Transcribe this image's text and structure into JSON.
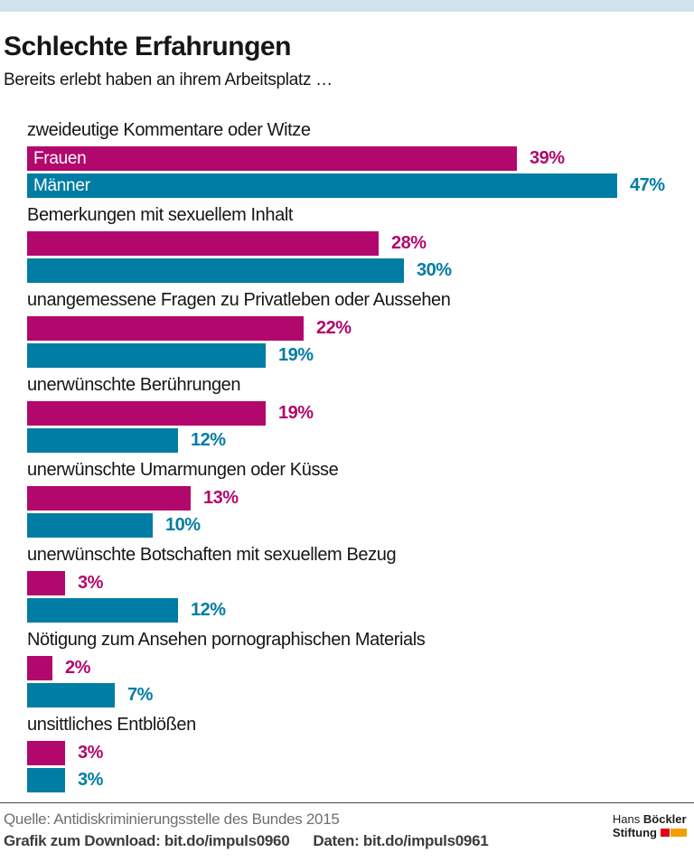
{
  "header": {
    "title": "Schlechte Erfahrungen",
    "subtitle": "Bereits erlebt haben an ihrem Arbeitsplatz …"
  },
  "chart_data": {
    "type": "bar",
    "orientation": "horizontal",
    "title": "Schlechte Erfahrungen",
    "subtitle": "Bereits erlebt haben an ihrem Arbeitsplatz …",
    "unit": "%",
    "xlim": [
      0,
      50
    ],
    "grid": false,
    "legend_position": "inside-first-group-bars",
    "categories": [
      "zweideutige Kommentare oder Witze",
      "Bemerkungen mit sexuellem Inhalt",
      "unangemessene Fragen zu Privatleben oder Aussehen",
      "unerwünschte Berührungen",
      "unerwünschte Umarmungen oder Küsse",
      "unerwünschte Botschaften mit sexuellem Bezug",
      "Nötigung zum Ansehen pornographischen Materials",
      "unsittliches Entblößen"
    ],
    "series": [
      {
        "name": "Frauen",
        "key": "frauen",
        "color": "#b2076c",
        "values": [
          39,
          28,
          22,
          19,
          13,
          3,
          2,
          3
        ]
      },
      {
        "name": "Männer",
        "key": "maenner",
        "color": "#007da4",
        "values": [
          47,
          30,
          19,
          12,
          10,
          12,
          7,
          3
        ]
      }
    ]
  },
  "footer": {
    "source": "Quelle: Antidiskriminierungsstelle des Bundes 2015",
    "download": "Grafik zum Download: bit.do/impuls0960",
    "data": "Daten: bit.do/impuls0961"
  },
  "logo": {
    "line1_regular": "Hans",
    "line1_bold": "Böckler",
    "line2_bold": "Stiftung"
  },
  "colors": {
    "accent_band": "#cfe4ee",
    "frauen": "#b2076c",
    "maenner": "#007da4",
    "logo_red": "#e2001a",
    "logo_orange": "#f59e00"
  }
}
